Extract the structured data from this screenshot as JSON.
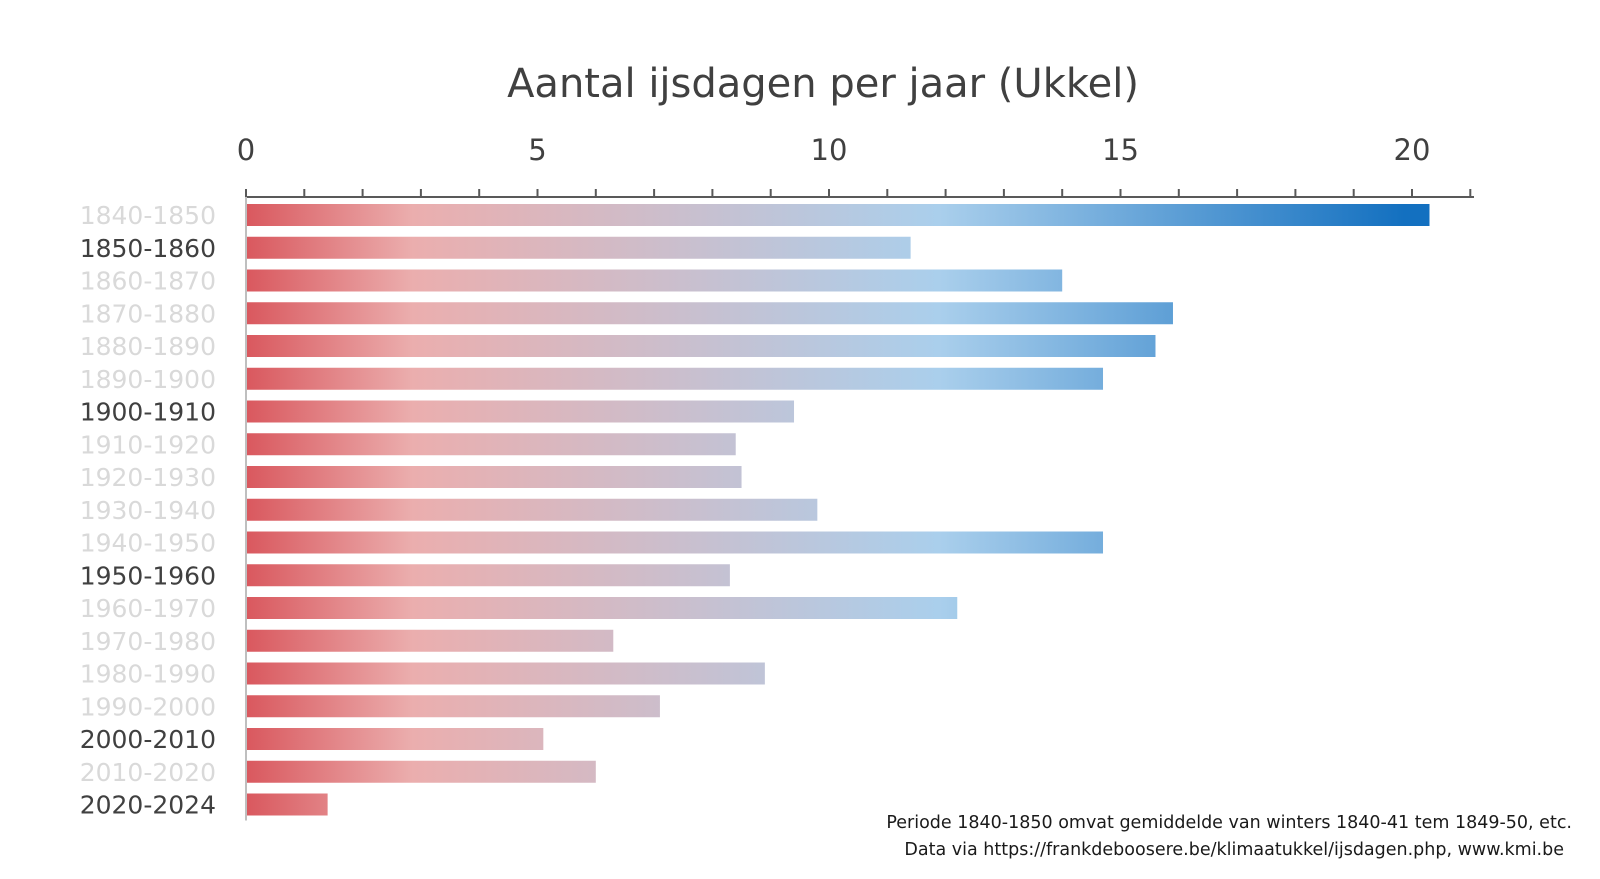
{
  "chart_data": {
    "type": "bar",
    "orientation": "horizontal",
    "title": "Aantal ijsdagen per jaar (Ukkel)",
    "xlabel": "",
    "ylabel": "",
    "xlim": [
      0,
      21
    ],
    "x_ticks": [
      0,
      5,
      10,
      15,
      20
    ],
    "x_axis_position": "top",
    "grid": false,
    "legend": "none",
    "categories": [
      "1840-1850",
      "1850-1860",
      "1860-1870",
      "1870-1880",
      "1880-1890",
      "1890-1900",
      "1900-1910",
      "1910-1920",
      "1920-1930",
      "1930-1940",
      "1940-1950",
      "1950-1960",
      "1960-1970",
      "1970-1980",
      "1980-1990",
      "1990-2000",
      "2000-2010",
      "2010-2020",
      "2020-2024"
    ],
    "highlighted_categories": [
      "1850-1860",
      "1900-1910",
      "1950-1960",
      "2000-2010",
      "2020-2024"
    ],
    "values": [
      20.3,
      11.4,
      14.0,
      15.9,
      15.6,
      14.7,
      9.4,
      8.4,
      8.5,
      9.8,
      14.7,
      8.3,
      12.2,
      6.3,
      8.9,
      7.1,
      5.1,
      6.0,
      1.4
    ],
    "colors": {
      "bar_start": "#d9585e",
      "bar_mid": "#ebaeae",
      "bar_light_blue": "#aacfec",
      "bar_end": "#1370c0",
      "text": "#404040",
      "text_muted": "#d9d9d9",
      "axis": "#595959"
    },
    "notes": [
      "Periode 1840-1850 omvat gemiddelde van winters 1840-41 tem 1849-50, etc.",
      "Data via https://frankdeboosere.be/klimaatukkel/ijsdagen.php, www.kmi.be"
    ]
  }
}
